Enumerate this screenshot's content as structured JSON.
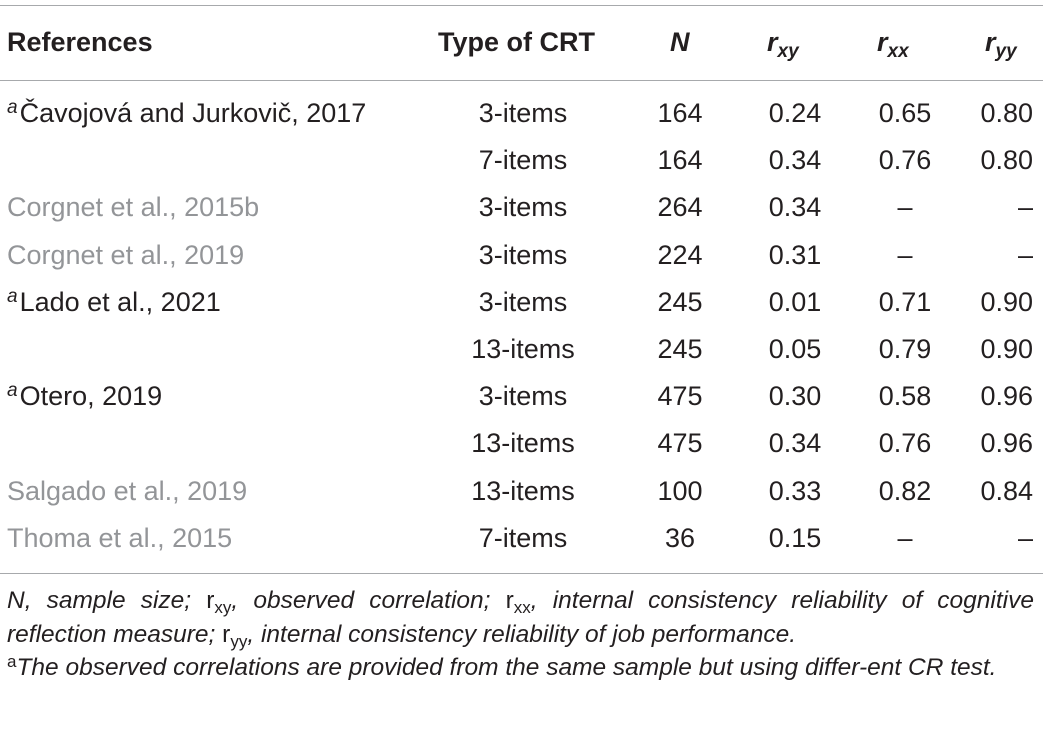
{
  "table": {
    "headers": {
      "references": "References",
      "type": "Type of CRT",
      "n": "N",
      "rxy_base": "r",
      "rxy_sub": "xy",
      "rxx_base": "r",
      "rxx_sub": "xx",
      "ryy_base": "r",
      "ryy_sub": "yy"
    },
    "rows": [
      {
        "mark": "a",
        "ref": "Čavojová and Jurkovič, 2017",
        "type": "3-items",
        "n": "164",
        "rxy": "0.24",
        "rxx": "0.65",
        "ryy": "0.80"
      },
      {
        "mark": "",
        "ref": "",
        "type": "7-items",
        "n": "164",
        "rxy": "0.34",
        "rxx": "0.76",
        "ryy": "0.80"
      },
      {
        "mark": "",
        "ref": "Corgnet et al., 2015b",
        "type": "3-items",
        "n": "264",
        "rxy": "0.34",
        "rxx": "–",
        "ryy": "–"
      },
      {
        "mark": "",
        "ref": "Corgnet et al., 2019",
        "type": "3-items",
        "n": "224",
        "rxy": "0.31",
        "rxx": "–",
        "ryy": "–"
      },
      {
        "mark": "a",
        "ref": "Lado et al., 2021",
        "type": "3-items",
        "n": "245",
        "rxy": "0.01",
        "rxx": "0.71",
        "ryy": "0.90"
      },
      {
        "mark": "",
        "ref": "",
        "type": "13-items",
        "n": "245",
        "rxy": "0.05",
        "rxx": "0.79",
        "ryy": "0.90"
      },
      {
        "mark": "a",
        "ref": "Otero, 2019",
        "type": "3-items",
        "n": "475",
        "rxy": "0.30",
        "rxx": "0.58",
        "ryy": "0.96"
      },
      {
        "mark": "",
        "ref": "",
        "type": "13-items",
        "n": "475",
        "rxy": "0.34",
        "rxx": "0.76",
        "ryy": "0.96"
      },
      {
        "mark": "",
        "ref": "Salgado et al., 2019",
        "type": "13-items",
        "n": "100",
        "rxy": "0.33",
        "rxx": "0.82",
        "ryy": "0.84"
      },
      {
        "mark": "",
        "ref": "Thoma et al., 2015",
        "type": "7-items",
        "n": "36",
        "rxy": "0.15",
        "rxx": "–",
        "ryy": "–"
      }
    ]
  },
  "footnote": {
    "n_sym": "N",
    "n_def": ", sample size; ",
    "rxy_sym": "r",
    "rxy_sub": "xy",
    "rxy_def": ", observed correlation; ",
    "rxx_sym": "r",
    "rxx_sub": "xx",
    "rxx_def": ", internal consistency reliability of cognitive reflection measure; ",
    "ryy_sym": "r",
    "ryy_sub": "yy",
    "ryy_def": ", internal consistency reliability of job performance.",
    "a_mark": "a",
    "a_text": "The observed correlations are provided from the same sample but using differ-ent CR test."
  }
}
